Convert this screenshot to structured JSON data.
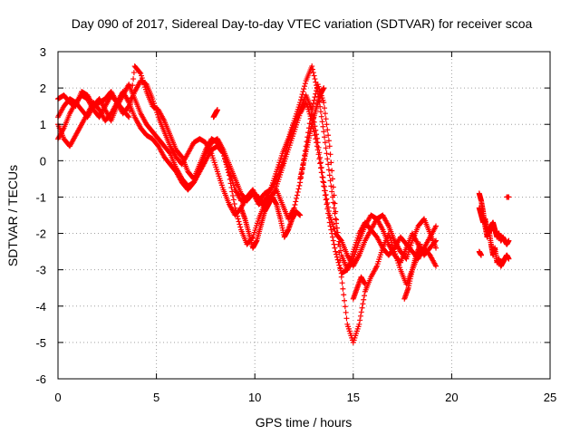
{
  "chart_data": {
    "type": "scatter",
    "title": "Day 090 of 2017, Sidereal Day-to-day VTEC variation (SDTVAR) for receiver scoa",
    "xlabel": "GPS time / hours",
    "ylabel": "SDTVAR / TECUs",
    "xlim": [
      0,
      25
    ],
    "ylim": [
      -6,
      3
    ],
    "xticks": [
      0,
      5,
      10,
      15,
      20,
      25
    ],
    "yticks": [
      -6,
      -5,
      -4,
      -3,
      -2,
      -1,
      0,
      1,
      2,
      3
    ],
    "grid": true,
    "legend": "none",
    "marker": "+",
    "color": "#ff0000",
    "series": [
      {
        "x": [
          0.0,
          0.3,
          0.6,
          0.9,
          1.2,
          1.5,
          1.8,
          2.1,
          2.4,
          2.7,
          3.0,
          3.3,
          3.6,
          3.9,
          4.2,
          4.5,
          4.8,
          5.1,
          5.4,
          5.7,
          6.0,
          6.3,
          6.6,
          6.9,
          7.2,
          7.5,
          7.8,
          8.1,
          8.4,
          8.7,
          9.0,
          9.3,
          9.6,
          9.9,
          10.2,
          10.5,
          10.8,
          11.1,
          11.4,
          11.7,
          12.0,
          12.3,
          12.6,
          12.9,
          13.2,
          13.5,
          13.8,
          14.1,
          14.4,
          14.7,
          15.0,
          15.3,
          15.6,
          15.9,
          16.2,
          16.5,
          16.8,
          17.1,
          17.4,
          17.7,
          18.0,
          18.3,
          18.6,
          18.9,
          19.2
        ],
        "y": [
          1.7,
          1.8,
          1.6,
          1.5,
          1.9,
          1.8,
          1.5,
          1.6,
          1.7,
          1.9,
          1.6,
          1.4,
          1.2,
          2.6,
          2.4,
          1.9,
          1.5,
          1.4,
          1.1,
          0.7,
          0.3,
          0.1,
          -0.3,
          -0.5,
          -0.1,
          0.3,
          0.6,
          0.5,
          0.2,
          -0.3,
          -0.8,
          -1.1,
          -1.0,
          -0.8,
          -1.1,
          -0.9,
          -0.8,
          -0.3,
          0.2,
          0.6,
          1.1,
          1.6,
          2.2,
          2.6,
          1.9,
          0.8,
          -0.4,
          -1.6,
          -2.6,
          -3.0,
          -2.7,
          -2.2,
          -1.8,
          -1.5,
          -1.6,
          -1.9,
          -2.3,
          -2.6,
          -2.8,
          -2.4,
          -2.0,
          -2.3,
          -2.6,
          -2.4,
          -2.2
        ]
      },
      {
        "x": [
          0.0,
          0.3,
          0.6,
          0.9,
          1.2,
          1.5,
          1.8,
          2.1,
          2.4,
          2.7,
          3.0,
          3.3,
          3.6,
          3.9,
          4.2,
          4.5,
          4.8,
          5.1,
          5.4,
          5.7,
          6.0,
          6.3,
          6.6,
          6.9,
          7.2,
          7.5,
          7.8,
          8.1,
          8.4,
          8.7,
          9.0,
          9.3,
          9.6,
          9.9,
          10.2,
          10.5,
          10.8,
          11.1,
          11.4,
          11.7,
          12.0,
          12.3,
          12.6,
          12.9,
          13.2,
          13.5,
          13.8,
          14.1,
          14.4,
          14.7,
          15.0,
          15.3,
          15.6,
          15.9,
          16.2,
          16.5,
          16.8,
          17.1,
          17.4,
          17.7,
          18.0,
          18.3,
          18.6,
          18.9,
          19.2
        ],
        "y": [
          1.2,
          1.5,
          1.7,
          1.6,
          1.4,
          1.2,
          1.5,
          1.7,
          1.4,
          1.1,
          1.5,
          1.8,
          2.1,
          1.7,
          1.3,
          1.0,
          0.8,
          0.6,
          0.4,
          0.2,
          -0.2,
          -0.5,
          -0.7,
          -0.6,
          -0.2,
          0.2,
          0.5,
          0.6,
          0.3,
          -0.1,
          -0.5,
          -0.9,
          -1.1,
          -0.9,
          -1.0,
          -1.3,
          -1.1,
          -0.7,
          -0.2,
          0.3,
          0.8,
          1.3,
          1.6,
          1.1,
          0.3,
          -0.7,
          -1.7,
          -2.5,
          -3.1,
          -3.0,
          -2.5,
          -2.0,
          -1.7,
          -1.9,
          -2.1,
          -2.4,
          -2.6,
          -2.4,
          -2.1,
          -2.3,
          -2.5,
          -2.7,
          -2.4,
          -2.1,
          -1.8
        ]
      },
      {
        "x": [
          0.0,
          0.3,
          0.6,
          0.9,
          1.2,
          1.5,
          1.8,
          2.1,
          2.4,
          2.7,
          3.0,
          3.3,
          3.6,
          3.9,
          4.2,
          4.5,
          4.8,
          5.1,
          5.4,
          5.7,
          6.0,
          6.3,
          6.6,
          6.9,
          7.2,
          7.5,
          7.8,
          8.1,
          8.4,
          8.7,
          9.0,
          9.3,
          9.6,
          9.9,
          10.2,
          10.5,
          10.8,
          11.1,
          11.4,
          11.7,
          12.0,
          12.3,
          12.6,
          12.9,
          13.2,
          13.5,
          13.8,
          14.1,
          14.4,
          14.7,
          15.0,
          15.3,
          15.6,
          15.9,
          16.2,
          16.5,
          16.8,
          17.1,
          17.4,
          17.7,
          18.0,
          18.3,
          18.6,
          18.9,
          19.2
        ],
        "y": [
          0.6,
          0.9,
          1.3,
          1.6,
          1.8,
          1.7,
          1.4,
          1.2,
          1.5,
          1.8,
          1.6,
          1.3,
          1.5,
          1.9,
          2.2,
          2.1,
          1.7,
          1.2,
          0.8,
          0.4,
          0.1,
          -0.1,
          0.2,
          0.5,
          0.6,
          0.5,
          0.2,
          -0.3,
          -0.8,
          -1.2,
          -1.5,
          -1.3,
          -1.0,
          -0.9,
          -1.2,
          -1.1,
          -0.8,
          -0.5,
          -0.1,
          0.5,
          1.0,
          1.4,
          1.8,
          1.4,
          0.5,
          -0.6,
          -1.5,
          -2.0,
          -2.2,
          -2.6,
          -2.9,
          -2.6,
          -2.2,
          -1.9,
          -1.6,
          -1.5,
          -1.8,
          -2.2,
          -2.5,
          -2.7,
          -2.2,
          -1.8,
          -1.6,
          -2.0,
          -2.4
        ]
      },
      {
        "x": [
          0.0,
          0.3,
          0.6,
          0.9,
          1.2,
          1.5,
          1.8,
          2.1,
          2.4,
          2.7,
          3.0,
          3.3,
          3.6,
          3.9,
          4.2,
          4.5,
          4.8,
          5.1,
          5.4,
          5.7,
          6.0,
          6.3,
          6.6,
          6.9,
          7.2,
          7.5,
          7.8,
          8.1,
          8.4,
          8.7,
          9.0,
          9.3,
          9.6,
          9.9,
          10.2,
          10.5,
          10.8,
          11.1,
          11.4,
          11.7,
          12.0,
          12.3,
          12.6,
          12.9,
          13.2,
          13.5,
          13.8,
          14.1,
          14.4,
          14.7,
          15.0,
          15.3,
          15.6,
          15.9,
          16.2,
          16.5,
          16.8,
          17.1,
          17.4,
          17.7,
          18.0,
          18.3,
          18.6,
          18.9,
          19.2
        ],
        "y": [
          1.0,
          0.6,
          0.4,
          0.7,
          1.0,
          1.3,
          1.6,
          1.4,
          1.1,
          1.3,
          1.6,
          1.9,
          1.6,
          1.2,
          0.9,
          0.7,
          0.6,
          0.4,
          0.1,
          -0.1,
          -0.3,
          -0.6,
          -0.8,
          -0.6,
          -0.3,
          0.0,
          0.3,
          0.4,
          0.2,
          -0.4,
          -1.3,
          -1.9,
          -2.3,
          -2.1,
          -1.6,
          -1.2,
          -1.0,
          -0.8,
          -1.2,
          -1.6,
          -1.3,
          -0.6,
          0.4,
          1.4,
          2.1,
          1.6,
          0.4,
          -1.4,
          -3.2,
          -4.5,
          -5.0,
          -4.5,
          -3.6,
          -3.2,
          -2.9,
          -2.4,
          -2.0,
          -2.5,
          -3.0,
          -3.4,
          -3.0,
          -2.6,
          -2.4,
          -2.6,
          -2.9
        ]
      },
      {
        "x": [
          7.9,
          8.0,
          8.1
        ],
        "y": [
          1.2,
          1.3,
          1.4
        ]
      },
      {
        "x": [
          9.3,
          9.5,
          9.7,
          9.9,
          10.1,
          10.3,
          10.5,
          10.7,
          10.9,
          11.1,
          11.3,
          11.5,
          11.7,
          11.9,
          12.1,
          12.3
        ],
        "y": [
          -1.3,
          -1.6,
          -2.0,
          -2.4,
          -2.2,
          -1.8,
          -1.4,
          -1.2,
          -1.0,
          -1.2,
          -1.6,
          -2.1,
          -1.9,
          -1.6,
          -1.4,
          -1.5
        ]
      },
      {
        "x": [
          12.3,
          12.5,
          12.7,
          12.9,
          13.1,
          13.3,
          13.5
        ],
        "y": [
          -0.5,
          0.0,
          0.5,
          1.0,
          1.4,
          1.8,
          2.0
        ]
      },
      {
        "x": [
          15.0,
          15.2,
          15.4,
          15.6
        ],
        "y": [
          -3.8,
          -3.5,
          -3.2,
          -3.4
        ]
      },
      {
        "x": [
          17.6,
          17.8,
          18.0,
          18.2,
          18.4
        ],
        "y": [
          -3.8,
          -3.5,
          -3.0,
          -2.6,
          -2.3
        ]
      },
      {
        "x": [
          21.4,
          21.5,
          21.6,
          21.7,
          21.8,
          21.9,
          22.0,
          22.1,
          22.2,
          22.3,
          22.4,
          22.5,
          22.6,
          22.7,
          22.8,
          22.9
        ],
        "y": [
          -0.9,
          -1.1,
          -1.4,
          -1.8,
          -2.1,
          -1.9,
          -2.3,
          -2.6,
          -2.4,
          -2.8,
          -2.7,
          -2.9,
          -2.8,
          -2.7,
          -2.6,
          -2.7
        ]
      },
      {
        "x": [
          21.4,
          21.5,
          21.6,
          21.7,
          21.8,
          21.9,
          22.0,
          22.1,
          22.2,
          22.3,
          22.4,
          22.5,
          22.6,
          22.7,
          22.8,
          22.9
        ],
        "y": [
          -1.3,
          -1.5,
          -1.7,
          -1.6,
          -1.9,
          -2.0,
          -1.8,
          -1.7,
          -1.9,
          -2.1,
          -2.0,
          -2.2,
          -2.1,
          -2.2,
          -2.3,
          -2.2
        ]
      },
      {
        "x": [
          21.4,
          21.5
        ],
        "y": [
          -2.5,
          -2.6
        ]
      },
      {
        "x": [
          22.8,
          22.9
        ],
        "y": [
          -1.0,
          -1.0
        ]
      }
    ]
  }
}
